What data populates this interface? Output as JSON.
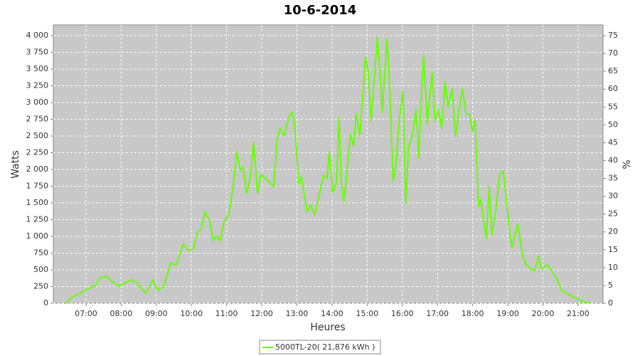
{
  "chart_data": {
    "type": "line",
    "title": "10-6-2014",
    "xlabel": "Heures",
    "ylabel": "Watts",
    "y2label": "%",
    "x": [
      6.43,
      6.58,
      6.98,
      7.28,
      7.38,
      7.59,
      7.79,
      7.95,
      8.15,
      8.29,
      8.44,
      8.7,
      8.9,
      9.04,
      9.21,
      9.41,
      9.57,
      9.77,
      9.91,
      10.05,
      10.18,
      10.28,
      10.38,
      10.52,
      10.62,
      10.72,
      10.82,
      10.92,
      11.07,
      11.19,
      11.29,
      11.39,
      11.47,
      11.57,
      11.67,
      11.77,
      11.88,
      11.98,
      12.14,
      12.34,
      12.44,
      12.52,
      12.64,
      12.77,
      12.87,
      12.95,
      13.05,
      13.13,
      13.29,
      13.39,
      13.51,
      13.66,
      13.76,
      13.86,
      13.92,
      14.02,
      14.12,
      14.2,
      14.26,
      14.34,
      14.42,
      14.52,
      14.61,
      14.69,
      14.79,
      14.87,
      14.95,
      15.03,
      15.11,
      15.19,
      15.29,
      15.39,
      15.43,
      15.49,
      15.56,
      15.64,
      15.74,
      15.82,
      15.92,
      16.02,
      16.1,
      16.18,
      16.29,
      16.39,
      16.47,
      16.55,
      16.61,
      16.71,
      16.77,
      16.85,
      16.93,
      17.03,
      17.12,
      17.22,
      17.3,
      17.42,
      17.52,
      17.61,
      17.71,
      17.81,
      17.91,
      17.99,
      18.07,
      18.17,
      18.23,
      18.31,
      18.39,
      18.47,
      18.55,
      18.65,
      18.77,
      18.87,
      18.96,
      19.04,
      19.12,
      19.28,
      19.43,
      19.53,
      19.67,
      19.77,
      19.87,
      19.97,
      20.13,
      20.27,
      20.43,
      20.53,
      20.74,
      20.98,
      21.18,
      21.34
    ],
    "series": [
      {
        "name": "5000TL-20( 21,876 kWh )",
        "color": "#66ff00",
        "values": [
          0,
          85,
          190,
          275,
          380,
          400,
          300,
          255,
          320,
          350,
          310,
          150,
          350,
          190,
          255,
          600,
          575,
          890,
          790,
          810,
          1075,
          1105,
          1370,
          1235,
          935,
          1000,
          935,
          1210,
          1340,
          1765,
          2275,
          1980,
          2040,
          1640,
          1870,
          2400,
          1640,
          1925,
          1850,
          1745,
          2455,
          2615,
          2510,
          2775,
          2860,
          2615,
          1785,
          1895,
          1370,
          1470,
          1320,
          1680,
          1915,
          1870,
          2265,
          1660,
          1785,
          2775,
          1820,
          1520,
          1935,
          2530,
          2350,
          2830,
          2510,
          3040,
          3680,
          3470,
          2725,
          3255,
          3980,
          3255,
          2850,
          3360,
          3950,
          3255,
          1820,
          2085,
          2775,
          3170,
          1500,
          2350,
          2510,
          2885,
          2170,
          3200,
          3700,
          2670,
          3040,
          3445,
          2725,
          2885,
          2615,
          3310,
          2935,
          3200,
          2490,
          2885,
          3200,
          2830,
          2830,
          2565,
          2745,
          1445,
          1555,
          1235,
          970,
          1745,
          1020,
          1360,
          1925,
          1980,
          1555,
          1130,
          830,
          1180,
          700,
          575,
          510,
          490,
          700,
          510,
          575,
          470,
          330,
          190,
          130,
          65,
          20,
          10
        ]
      }
    ],
    "xlim": [
      6.07,
      21.71
    ],
    "xticks": [
      {
        "value": 7,
        "label": "07:00"
      },
      {
        "value": 8,
        "label": "08:00"
      },
      {
        "value": 9,
        "label": "09:00"
      },
      {
        "value": 10,
        "label": "10:00"
      },
      {
        "value": 11,
        "label": "11:00"
      },
      {
        "value": 12,
        "label": "12:00"
      },
      {
        "value": 13,
        "label": "13:00"
      },
      {
        "value": 14,
        "label": "14:00"
      },
      {
        "value": 15,
        "label": "15:00"
      },
      {
        "value": 16,
        "label": "16:00"
      },
      {
        "value": 17,
        "label": "17:00"
      },
      {
        "value": 18,
        "label": "18:00"
      },
      {
        "value": 19,
        "label": "19:00"
      },
      {
        "value": 20,
        "label": "20:00"
      },
      {
        "value": 21,
        "label": "21:00"
      }
    ],
    "ylim": [
      0,
      4160
    ],
    "yticks": [
      0,
      250,
      500,
      750,
      {
        "value": 1000,
        "label": "1 000"
      },
      {
        "value": 1250,
        "label": "1 250"
      },
      {
        "value": 1500,
        "label": "1 500"
      },
      {
        "value": 1750,
        "label": "1 750"
      },
      {
        "value": 2000,
        "label": "2 000"
      },
      {
        "value": 2250,
        "label": "2 250"
      },
      {
        "value": 2500,
        "label": "2 500"
      },
      {
        "value": 2750,
        "label": "2 750"
      },
      {
        "value": 3000,
        "label": "3 000"
      },
      {
        "value": 3250,
        "label": "3 250"
      },
      {
        "value": 3500,
        "label": "3 500"
      },
      {
        "value": 3750,
        "label": "3 750"
      },
      {
        "value": 4000,
        "label": "4 000"
      }
    ],
    "y2lim": [
      0,
      78
    ],
    "y2ticks": [
      0,
      5,
      10,
      15,
      20,
      25,
      30,
      35,
      40,
      45,
      50,
      55,
      60,
      65,
      70,
      75
    ],
    "grid": true,
    "background": "#c8c8c8",
    "legend": "bottom"
  }
}
